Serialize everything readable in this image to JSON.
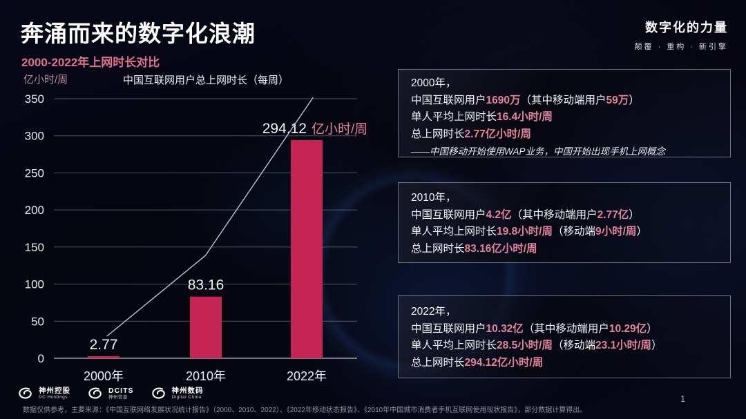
{
  "header": {
    "title": "奔涌而来的数字化浪潮",
    "subtitle": "2000-2022年上网时长对比",
    "brand_title": "数字化的力量",
    "brand_tagline": "颠覆 · 重构 · 新引擎"
  },
  "chart_data": {
    "type": "bar",
    "title": "中国互联网用户总上网时长（每周）",
    "unit_label": "亿小时/周",
    "categories": [
      "2000年",
      "2010年",
      "2022年"
    ],
    "values": [
      2.77,
      83.16,
      294.12
    ],
    "value_labels": [
      "2.77",
      "83.16",
      "294.12"
    ],
    "value_label_units": [
      "",
      "",
      "亿小时/周"
    ],
    "ylim": [
      0,
      350
    ],
    "ytick_step": 50,
    "grid": true,
    "legend": false,
    "bar_color": "#c42454",
    "accent_color": "#e2839d",
    "trend_line": {
      "points_frac": [
        [
          0.175,
          0.085
        ],
        [
          0.5,
          0.396
        ],
        [
          0.855,
          1.005
        ]
      ]
    }
  },
  "info_boxes": [
    {
      "id": "2000",
      "year_line": "2000年，",
      "lines": [
        [
          {
            "t": "中国互联网用户",
            "hl": false
          },
          {
            "t": "1690万",
            "hl": true
          },
          {
            "t": "（其中移动端用户",
            "hl": false
          },
          {
            "t": "59万",
            "hl": true
          },
          {
            "t": "）",
            "hl": false
          }
        ],
        [
          {
            "t": "单人平均上网时长",
            "hl": false
          },
          {
            "t": "16.4小时/周",
            "hl": true
          }
        ],
        [
          {
            "t": "总上网时长",
            "hl": false
          },
          {
            "t": "2.77亿小时/周",
            "hl": true
          }
        ]
      ],
      "note": "——中国移动开始使用WAP业务，中国开始出现手机上网概念"
    },
    {
      "id": "2010",
      "year_line": "2010年，",
      "lines": [
        [
          {
            "t": "中国互联网用户",
            "hl": false
          },
          {
            "t": "4.2亿",
            "hl": true
          },
          {
            "t": "（其中移动端用户",
            "hl": false
          },
          {
            "t": "2.77亿",
            "hl": true
          },
          {
            "t": "）",
            "hl": false
          }
        ],
        [
          {
            "t": "单人平均上网时长",
            "hl": false
          },
          {
            "t": "19.8小时/周",
            "hl": true
          },
          {
            "t": "（移动端",
            "hl": false
          },
          {
            "t": "9小时/周",
            "hl": true
          },
          {
            "t": "）",
            "hl": false
          }
        ],
        [
          {
            "t": "总上网时长",
            "hl": false
          },
          {
            "t": "83.16亿小时/周",
            "hl": true
          }
        ]
      ],
      "note": ""
    },
    {
      "id": "2022",
      "year_line": "2022年，",
      "lines": [
        [
          {
            "t": "中国互联网用户",
            "hl": false
          },
          {
            "t": "10.32亿",
            "hl": true
          },
          {
            "t": "（其中移动端用户",
            "hl": false
          },
          {
            "t": "10.29亿",
            "hl": true
          },
          {
            "t": "）",
            "hl": false
          }
        ],
        [
          {
            "t": "单人平均上网时长",
            "hl": false
          },
          {
            "t": "28.5小时/周",
            "hl": true
          },
          {
            "t": "（移动端",
            "hl": false
          },
          {
            "t": "23.1小时/周",
            "hl": true
          },
          {
            "t": "）",
            "hl": false
          }
        ],
        [
          {
            "t": "总上网时长",
            "hl": false
          },
          {
            "t": "294.12亿小时/周",
            "hl": true
          }
        ]
      ],
      "note": ""
    }
  ],
  "footer": {
    "logos": [
      {
        "name": "神州控股",
        "sub": "DC Holdings"
      },
      {
        "name": "DCITS",
        "sub": "神州信息"
      },
      {
        "name": "神州数码",
        "sub": "Digital China"
      }
    ],
    "source": "数据仅供参考，主要来源：《中国互联网络发展状况统计报告》（2000、2010、2022）、《2022年移动状态报告》、《2010年中国城市消费者手机互联网使用现状报告》，部分数据计算得出。",
    "page": "1"
  }
}
